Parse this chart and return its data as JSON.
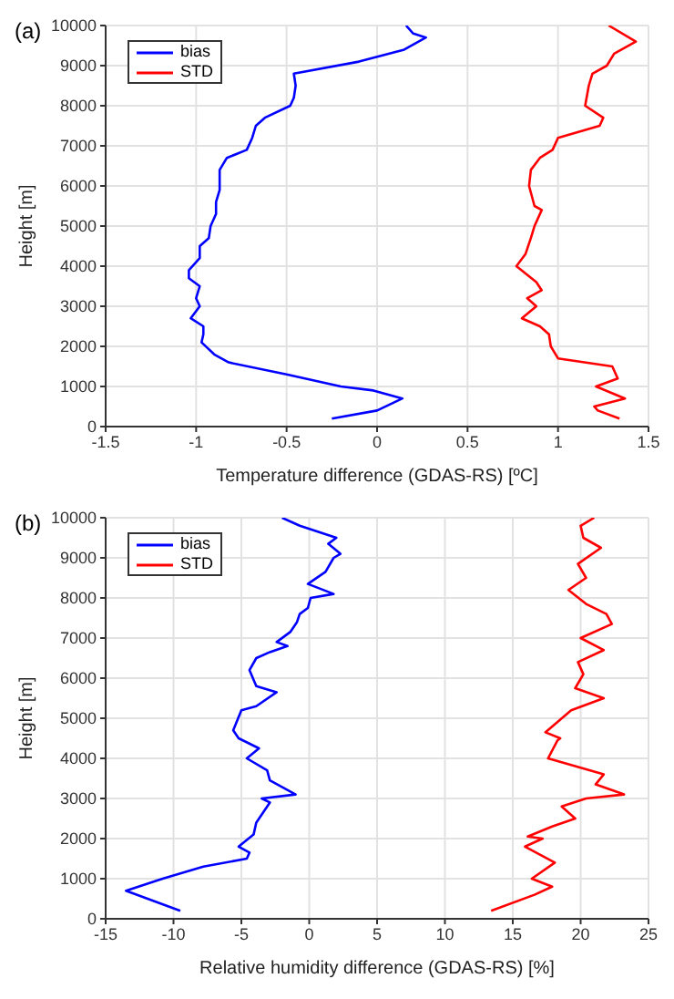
{
  "chart_data": [
    {
      "type": "line",
      "annotations": [
        "(a)"
      ],
      "xlabel": "Temperature difference (GDAS-RS) [ºC]",
      "ylabel": "Height [m]",
      "xlim": [
        -1.5,
        1.5
      ],
      "xticks": [
        -1.5,
        -1,
        -0.5,
        0,
        0.5,
        1,
        1.5
      ],
      "ylim": [
        0,
        10000
      ],
      "yticks": [
        0,
        1000,
        2000,
        3000,
        4000,
        5000,
        6000,
        7000,
        8000,
        9000,
        10000
      ],
      "grid": true,
      "legend": "top left",
      "marker": "none",
      "line_style": "solid",
      "series": [
        {
          "name": "bias",
          "color": "#0000ff",
          "x": [
            -0.25,
            0,
            0.14,
            -0.02,
            -0.2,
            -0.5,
            -0.82,
            -0.9,
            -0.97,
            -0.96,
            -0.96,
            -1.03,
            -0.98,
            -1.0,
            -0.98,
            -1.04,
            -1.04,
            -0.98,
            -0.98,
            -0.93,
            -0.92,
            -0.89,
            -0.89,
            -0.87,
            -0.87,
            -0.83,
            -0.72,
            -0.69,
            -0.67,
            -0.62,
            -0.48,
            -0.46,
            -0.45,
            -0.46,
            -0.1,
            0.15,
            0.27,
            0.2,
            0.16
          ],
          "values": [
            200,
            400,
            700,
            900,
            1000,
            1300,
            1600,
            1800,
            2100,
            2300,
            2500,
            2700,
            3000,
            3200,
            3500,
            3700,
            3900,
            4200,
            4500,
            4700,
            5000,
            5300,
            5600,
            5900,
            6400,
            6700,
            6900,
            7200,
            7500,
            7700,
            8000,
            8200,
            8500,
            8800,
            9100,
            9400,
            9700,
            9800,
            10000
          ]
        },
        {
          "name": "STD",
          "color": "#ff0000",
          "x": [
            1.34,
            1.22,
            1.2,
            1.37,
            1.21,
            1.33,
            1.3,
            1.0,
            0.96,
            0.95,
            0.9,
            0.8,
            0.88,
            0.83,
            0.91,
            0.88,
            0.77,
            0.82,
            0.85,
            0.87,
            0.91,
            0.87,
            0.84,
            0.85,
            0.9,
            0.97,
            1.0,
            1.23,
            1.25,
            1.15,
            1.17,
            1.19,
            1.27,
            1.31,
            1.43,
            1.28
          ],
          "values": [
            200,
            400,
            500,
            700,
            1000,
            1200,
            1500,
            1700,
            2000,
            2300,
            2500,
            2700,
            3000,
            3200,
            3400,
            3600,
            4000,
            4300,
            4700,
            5000,
            5400,
            5500,
            6000,
            6400,
            6700,
            6900,
            7200,
            7500,
            7700,
            8000,
            8500,
            8800,
            9000,
            9300,
            9600,
            10000
          ]
        }
      ]
    },
    {
      "type": "line",
      "annotations": [
        "(b)"
      ],
      "xlabel": "Relative humidity difference (GDAS-RS) [%]",
      "ylabel": "Height [m]",
      "xlim": [
        -15,
        25
      ],
      "xticks": [
        -15,
        -10,
        -5,
        0,
        5,
        10,
        15,
        20,
        25
      ],
      "ylim": [
        0,
        10000
      ],
      "yticks": [
        0,
        1000,
        2000,
        3000,
        4000,
        5000,
        6000,
        7000,
        8000,
        9000,
        10000
      ],
      "grid": true,
      "legend": "top left",
      "marker": "none",
      "line_style": "solid",
      "series": [
        {
          "name": "bias",
          "color": "#0000ff",
          "x": [
            -9.5,
            -13.5,
            -10.8,
            -7.8,
            -4.6,
            -4.4,
            -5.2,
            -4.1,
            -3.9,
            -3.3,
            -2.9,
            -3.5,
            -1.0,
            -2.9,
            -3.1,
            -4.6,
            -3.7,
            -5.2,
            -5.6,
            -5.0,
            -3.9,
            -2.4,
            -3.9,
            -4.4,
            -3.9,
            -2.9,
            -1.6,
            -2.4,
            -1.4,
            -0.9,
            -0.7,
            -0.1,
            0.1,
            1.8,
            -0.1,
            1.2,
            1.8,
            2.3,
            1.4,
            2.0,
            -0.7,
            -2.0
          ],
          "values": [
            200,
            700,
            1000,
            1300,
            1500,
            1650,
            1800,
            2100,
            2400,
            2700,
            2900,
            3000,
            3100,
            3450,
            3700,
            4000,
            4250,
            4500,
            4700,
            5200,
            5300,
            5650,
            5800,
            6200,
            6500,
            6650,
            6800,
            6900,
            7150,
            7400,
            7600,
            7750,
            8000,
            8100,
            8350,
            8650,
            9000,
            9100,
            9350,
            9500,
            9800,
            10000
          ]
        },
        {
          "name": "STD",
          "color": "#ff0000",
          "x": [
            13.4,
            16.6,
            17.9,
            16.4,
            18.1,
            15.9,
            17.2,
            16.1,
            17.9,
            19.6,
            18.6,
            20.4,
            23.2,
            21.1,
            21.7,
            17.6,
            18.3,
            18.5,
            17.4,
            19.3,
            21.7,
            19.6,
            20.2,
            19.8,
            21.7,
            20.0,
            22.3,
            21.9,
            20.4,
            19.1,
            20.4,
            19.8,
            21.5,
            20.2,
            20.0,
            21.0
          ],
          "values": [
            200,
            600,
            800,
            1000,
            1400,
            1800,
            2000,
            2050,
            2300,
            2500,
            2800,
            3000,
            3100,
            3350,
            3600,
            4000,
            4450,
            4500,
            4650,
            5200,
            5500,
            5750,
            6100,
            6400,
            6700,
            7000,
            7350,
            7600,
            7850,
            8200,
            8500,
            8850,
            9250,
            9500,
            9800,
            10000
          ]
        }
      ]
    }
  ]
}
